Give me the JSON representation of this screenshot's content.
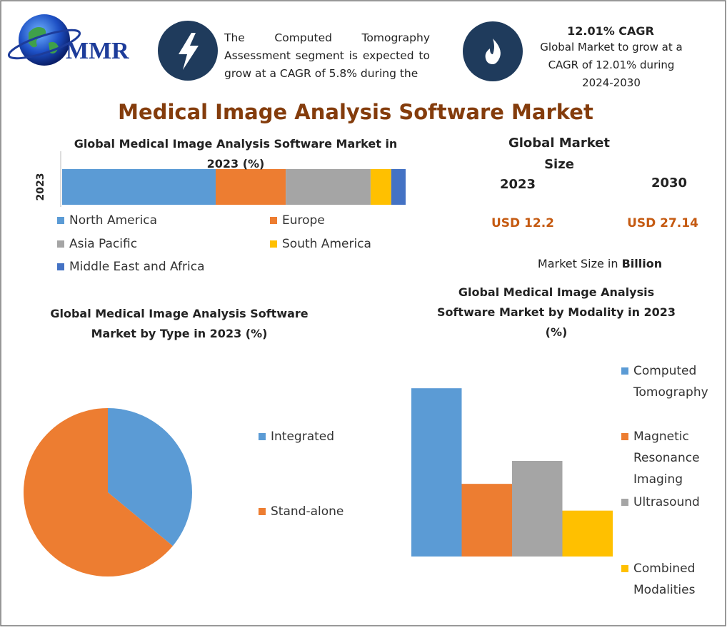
{
  "header": {
    "logo": "MMR",
    "note_1": "The Computed Tomography Assessment segment is expected to grow at a CAGR of 5.8% during the",
    "note_2_title": "12.01% CAGR",
    "note_2": "Global Market to grow at a CAGR of 12.01% during 2024-2030"
  },
  "title": "Medical Image Analysis Software Market",
  "market_size": {
    "title": "Global Market Size",
    "years": [
      "2023",
      "2030"
    ],
    "values": [
      "USD 12.2",
      "USD 27.14"
    ],
    "unit_prefix": "Market Size in",
    "unit": "Billion"
  },
  "chart_data": [
    {
      "type": "bar",
      "orientation": "horizontal",
      "stacked": true,
      "title": "Global Medical Image Analysis Software Market in 2023 (%)",
      "categories": [
        "2023"
      ],
      "xlim": [
        0,
        100
      ],
      "series": [
        {
          "name": "North America",
          "color": "#5b9bd5",
          "values": [
            44.7
          ]
        },
        {
          "name": "Europe",
          "color": "#ed7d31",
          "values": [
            20.4
          ]
        },
        {
          "name": "Asia Pacific",
          "color": "#a5a5a5",
          "values": [
            24.7
          ]
        },
        {
          "name": "South America",
          "color": "#ffc000",
          "values": [
            6.0
          ]
        },
        {
          "name": "Middle East and Africa",
          "color": "#4472c4",
          "values": [
            4.2
          ]
        }
      ]
    },
    {
      "type": "pie",
      "title": "Global Medical Image Analysis Software Market by Type in 2023 (%)",
      "categories": [
        "Integrated",
        "Stand-alone"
      ],
      "values": [
        36,
        64
      ],
      "colors": [
        "#5b9bd5",
        "#ed7d31"
      ]
    },
    {
      "type": "bar",
      "orientation": "vertical",
      "stacked": false,
      "title": "Global Medical Image Analysis Software Market by Modality in 2023 (%)",
      "categories": [
        "Computed Tomography",
        "Magnetic Resonance Imaging",
        "Ultrasound",
        "Combined Modalities"
      ],
      "values": [
        44,
        19,
        25,
        12
      ],
      "colors": [
        "#5b9bd5",
        "#ed7d31",
        "#a5a5a5",
        "#ffc000"
      ],
      "ylim": [
        0,
        50
      ]
    }
  ]
}
